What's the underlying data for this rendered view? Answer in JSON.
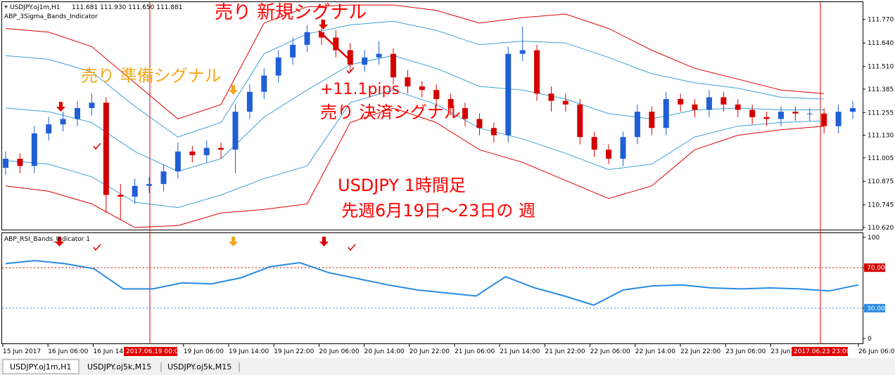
{
  "header": {
    "symbol": "USDJPY.oj1m,H1",
    "ohlc": "111.681 111.930 111.650 111.881",
    "indicator": "ABP_3Sigma_Bands_Indicator"
  },
  "chart_data": [
    {
      "type": "candlestick",
      "up_color": "#1f5fd6",
      "down_color": "#d40000",
      "open": [
        110.95,
        111.0,
        110.96,
        111.14,
        111.19,
        111.22,
        111.28,
        111.31,
        110.8,
        110.79,
        110.85,
        110.86,
        110.93,
        111.04,
        111.02,
        111.06,
        111.05,
        111.26,
        111.37,
        111.46,
        111.56,
        111.63,
        111.7,
        111.67,
        111.6,
        111.52,
        111.56,
        111.58,
        111.45,
        111.4,
        111.38,
        111.33,
        111.28,
        111.22,
        111.17,
        111.13,
        111.58,
        111.6,
        111.36,
        111.32,
        111.3,
        111.12,
        111.05,
        111.0,
        111.12,
        111.26,
        111.17,
        111.33,
        111.3,
        111.27,
        111.34,
        111.3,
        111.27,
        111.23,
        111.22,
        111.26,
        111.25,
        111.25,
        111.18,
        111.26
      ],
      "high": [
        111.04,
        111.03,
        111.18,
        111.23,
        111.26,
        111.32,
        111.36,
        111.34,
        110.86,
        110.89,
        110.9,
        110.97,
        111.09,
        111.07,
        111.1,
        111.09,
        111.3,
        111.41,
        111.5,
        111.6,
        111.67,
        111.74,
        111.77,
        111.71,
        111.64,
        111.6,
        111.65,
        111.61,
        111.49,
        111.43,
        111.41,
        111.36,
        111.31,
        111.25,
        111.2,
        111.62,
        111.73,
        111.63,
        111.4,
        111.36,
        111.33,
        111.15,
        111.08,
        111.15,
        111.3,
        111.29,
        111.37,
        111.36,
        111.33,
        111.38,
        111.37,
        111.33,
        111.3,
        111.26,
        111.29,
        111.29,
        111.28,
        111.28,
        111.3,
        111.32
      ],
      "low": [
        110.91,
        110.92,
        110.92,
        111.1,
        111.15,
        111.18,
        111.24,
        110.7,
        110.66,
        110.75,
        110.81,
        110.82,
        110.89,
        110.98,
        110.98,
        111.0,
        110.92,
        111.22,
        111.33,
        111.42,
        111.52,
        111.59,
        111.63,
        111.56,
        111.48,
        111.48,
        111.52,
        111.41,
        111.36,
        111.34,
        111.29,
        111.24,
        111.18,
        111.13,
        111.09,
        111.09,
        111.54,
        111.32,
        111.26,
        111.26,
        111.08,
        111.01,
        110.97,
        110.96,
        111.08,
        111.13,
        111.13,
        111.26,
        111.23,
        111.23,
        111.26,
        111.23,
        111.19,
        111.18,
        111.18,
        111.21,
        111.21,
        111.14,
        111.14,
        111.22
      ],
      "close": [
        111.0,
        110.96,
        111.14,
        111.19,
        111.22,
        111.28,
        111.31,
        110.8,
        110.79,
        110.85,
        110.86,
        110.93,
        111.04,
        111.02,
        111.06,
        111.05,
        111.26,
        111.37,
        111.46,
        111.56,
        111.63,
        111.7,
        111.67,
        111.6,
        111.52,
        111.56,
        111.58,
        111.45,
        111.4,
        111.38,
        111.33,
        111.28,
        111.22,
        111.17,
        111.13,
        111.58,
        111.6,
        111.36,
        111.32,
        111.3,
        111.12,
        111.05,
        111.0,
        111.12,
        111.26,
        111.17,
        111.33,
        111.3,
        111.27,
        111.34,
        111.3,
        111.27,
        111.23,
        111.22,
        111.26,
        111.25,
        111.25,
        111.18,
        111.26,
        111.28
      ],
      "bands": [
        {
          "color": "#e00000",
          "values": [
            111.72,
            111.7,
            111.62,
            111.42,
            111.22,
            111.3,
            111.75,
            111.84,
            111.85,
            111.85,
            111.82,
            111.75,
            111.78,
            111.8,
            111.72,
            111.6,
            111.5,
            111.44,
            111.38,
            111.36
          ]
        },
        {
          "color": "#3ea0d8",
          "values": [
            111.57,
            111.55,
            111.48,
            111.29,
            111.12,
            111.2,
            111.58,
            111.69,
            111.74,
            111.76,
            111.71,
            111.63,
            111.65,
            111.64,
            111.56,
            111.47,
            111.42,
            111.39,
            111.34,
            111.33
          ]
        },
        {
          "color": "#3ea0d8",
          "values": [
            111.28,
            111.26,
            111.2,
            111.04,
            110.93,
            111.0,
            111.23,
            111.38,
            111.52,
            111.57,
            111.5,
            111.4,
            111.38,
            111.33,
            111.25,
            111.22,
            111.27,
            111.28,
            111.27,
            111.27
          ]
        },
        {
          "color": "#3ea0d8",
          "values": [
            110.99,
            110.97,
            110.9,
            110.76,
            110.73,
            110.8,
            110.89,
            110.96,
            111.31,
            111.38,
            111.3,
            111.17,
            111.11,
            111.03,
            110.94,
            110.97,
            111.12,
            111.18,
            111.2,
            111.21
          ]
        },
        {
          "color": "#e00000",
          "values": [
            110.85,
            110.82,
            110.75,
            110.62,
            110.63,
            110.7,
            110.72,
            110.75,
            111.2,
            111.28,
            111.2,
            111.05,
            110.98,
            110.88,
            110.78,
            110.85,
            111.05,
            111.13,
            111.16,
            111.18
          ]
        }
      ],
      "ylim": [
        110.608,
        111.866
      ],
      "yticks": [
        {
          "value": 111.77,
          "label": "111.770"
        },
        {
          "value": 111.64,
          "label": "111.640"
        },
        {
          "value": 111.51,
          "label": "111.510"
        },
        {
          "value": 111.385,
          "label": "111.385"
        },
        {
          "value": 111.255,
          "label": "111.255"
        },
        {
          "value": 111.13,
          "label": "111.130"
        },
        {
          "value": 111.005,
          "label": "111.005"
        },
        {
          "value": 110.875,
          "label": "110.875"
        },
        {
          "value": 110.745,
          "label": "110.745"
        },
        {
          "value": 110.62,
          "label": "110.620"
        }
      ],
      "annotations": [
        {
          "text": "売り 新規シグナル",
          "color": "#ff0000"
        },
        {
          "text": "売り 準備シグナル",
          "color": "#f2a81d"
        },
        {
          "text": "+11.1pips",
          "color": "#ff0000"
        },
        {
          "text": "売り 決済シグナル",
          "color": "#ff0000"
        },
        {
          "text": "USDJPY 1時間足",
          "color": "#ff0000"
        },
        {
          "text": "先週6月19日～23日の 週",
          "color": "#ff0000"
        }
      ]
    },
    {
      "type": "line",
      "title": "ABP_RSI_Bands_Indicator 1",
      "color": "#2a8be0",
      "values": [
        74,
        77,
        74,
        69,
        49,
        49,
        55,
        54,
        60,
        71,
        75,
        65,
        59,
        53,
        48,
        45,
        42,
        61,
        50,
        42,
        33,
        48,
        52,
        53,
        50,
        49,
        50,
        49,
        47,
        53
      ],
      "ylim": [
        -4.8,
        104.1
      ],
      "yticks": [
        100,
        {
          "value": 70,
          "label": "70.00",
          "color": "#d00000"
        },
        {
          "value": 30,
          "label": "30.00",
          "color": "#2a8be0"
        },
        0
      ]
    }
  ],
  "x_axis": {
    "labels": [
      "15 Jun 2017",
      "16 Jun 06:00",
      "16 Jun 14:00",
      "19 Jun 06:00",
      "19 Jun 14:00",
      "19 Jun 22:00",
      "20 Jun 06:00",
      "20 Jun 14:00",
      "20 Jun 22:00",
      "21 Jun 06:00",
      "21 Jun 14:00",
      "21 Jun 22:00",
      "22 Jun 06:00",
      "22 Jun 14:00",
      "22 Jun 22:00",
      "23 Jun 06:00",
      "23 Jun 14:00",
      "26 Jun 06:00"
    ],
    "markers": [
      "2017.06.19 00:00",
      "2017.06.23 23:00"
    ]
  },
  "tabs": [
    "USDJPY.oj1m,H1",
    "USDJPY.oj5k,M15",
    "USDJPY.oj5k,M15"
  ]
}
